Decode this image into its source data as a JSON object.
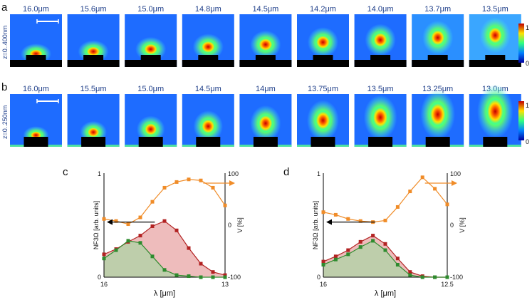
{
  "figure": {
    "row_a": {
      "letter": "a",
      "side_label": "z=0..400nm",
      "wavelengths": [
        "16.0μm",
        "15.6μm",
        "15.0μm",
        "14.8μm",
        "14.5μm",
        "14.2μm",
        "14.0μm",
        "13.7μm",
        "13.5μm"
      ],
      "colorbar_max": "1",
      "colorbar_min": "0"
    },
    "row_b": {
      "letter": "b",
      "side_label": "z=0..250nm",
      "wavelengths": [
        "16.0μm",
        "15.5μm",
        "15.0μm",
        "14.5μm",
        "14μm",
        "13.75μm",
        "13.5μm",
        "13.25μm",
        "13.0μm"
      ],
      "colorbar_max": "1",
      "colorbar_min": "0"
    }
  },
  "chart_data": [
    {
      "type": "line",
      "panel": "c",
      "xlabel": "λ [μm]",
      "ylabel_left": "NF3Ω [arb. units]",
      "ylabel_right": "V [%]",
      "x_ticks": [
        "16",
        "13"
      ],
      "y_left_ticks": [
        "1",
        "0"
      ],
      "y_right_ticks": [
        "100",
        "0",
        "-100"
      ],
      "xlim": [
        16,
        13
      ],
      "ylim_left": [
        0,
        1
      ],
      "ylim_right": [
        -100,
        100
      ],
      "x": [
        16.0,
        15.7,
        15.4,
        15.1,
        14.8,
        14.5,
        14.2,
        13.9,
        13.6,
        13.3,
        13.0
      ],
      "series": [
        {
          "name": "red",
          "axis": "left",
          "color": "#b22222",
          "values": [
            0.22,
            0.27,
            0.34,
            0.4,
            0.49,
            0.54,
            0.45,
            0.28,
            0.13,
            0.05,
            0.02
          ]
        },
        {
          "name": "green",
          "axis": "left",
          "color": "#2e8b2e",
          "values": [
            0.18,
            0.26,
            0.35,
            0.33,
            0.2,
            0.07,
            0.02,
            0.01,
            0.0,
            0.0,
            0.0
          ]
        },
        {
          "name": "orange",
          "axis": "right",
          "color": "#f08c28",
          "values": [
            12,
            8,
            2,
            15,
            45,
            72,
            83,
            88,
            86,
            72,
            38
          ]
        }
      ]
    },
    {
      "type": "line",
      "panel": "d",
      "xlabel": "λ [μm]",
      "ylabel_left": "NF3Ω [arb. units]",
      "ylabel_right": "V [%]",
      "x_ticks": [
        "16",
        "12.5"
      ],
      "y_left_ticks": [
        "1",
        "0"
      ],
      "y_right_ticks": [
        "100",
        "0",
        "-100"
      ],
      "xlim": [
        16,
        12.5
      ],
      "ylim_left": [
        0,
        1
      ],
      "ylim_right": [
        -100,
        100
      ],
      "x": [
        16.0,
        15.65,
        15.3,
        14.95,
        14.6,
        14.25,
        13.9,
        13.55,
        13.2,
        12.85,
        12.5
      ],
      "series": [
        {
          "name": "red",
          "axis": "left",
          "color": "#b22222",
          "values": [
            0.15,
            0.2,
            0.26,
            0.34,
            0.4,
            0.32,
            0.18,
            0.05,
            0.01,
            0.0,
            0.0
          ]
        },
        {
          "name": "green",
          "axis": "left",
          "color": "#2e8b2e",
          "values": [
            0.12,
            0.17,
            0.22,
            0.29,
            0.35,
            0.26,
            0.12,
            0.02,
            0.0,
            0.0,
            0.0
          ]
        },
        {
          "name": "orange",
          "axis": "right",
          "color": "#f08c28",
          "values": [
            25,
            20,
            12,
            8,
            6,
            9,
            35,
            65,
            92,
            70,
            40
          ]
        }
      ]
    }
  ]
}
